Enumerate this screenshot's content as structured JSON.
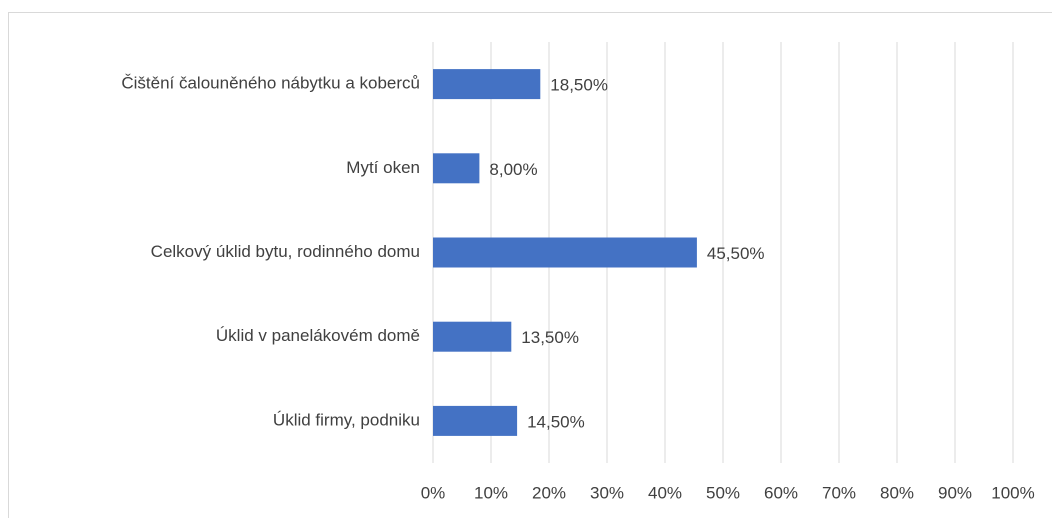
{
  "chart_data": {
    "type": "barh",
    "categories": [
      "Čištění čalouněného nábytku a koberců",
      "Mytí oken",
      "Celkový úklid bytu, rodinného domu",
      "Úklid v panelákovém domě ",
      "Úklid firmy, podniku"
    ],
    "values": [
      18.5,
      8.0,
      45.5,
      13.5,
      14.5
    ],
    "value_labels": [
      "18,50%",
      "8,00%",
      "45,50%",
      "13,50%",
      "14,50%"
    ],
    "color": "#4472c4",
    "xlim": [
      0,
      100
    ],
    "xticks": [
      {
        "value": 0,
        "label": "0%"
      },
      {
        "value": 10,
        "label": "10%"
      },
      {
        "value": 20,
        "label": "20%"
      },
      {
        "value": 30,
        "label": "30%"
      },
      {
        "value": 40,
        "label": "40%"
      },
      {
        "value": 50,
        "label": "50%"
      },
      {
        "value": 60,
        "label": "60%"
      },
      {
        "value": 70,
        "label": "70%"
      },
      {
        "value": 80,
        "label": "80%"
      },
      {
        "value": 90,
        "label": "90%"
      },
      {
        "value": 100,
        "label": "100%"
      }
    ],
    "grid": true
  }
}
